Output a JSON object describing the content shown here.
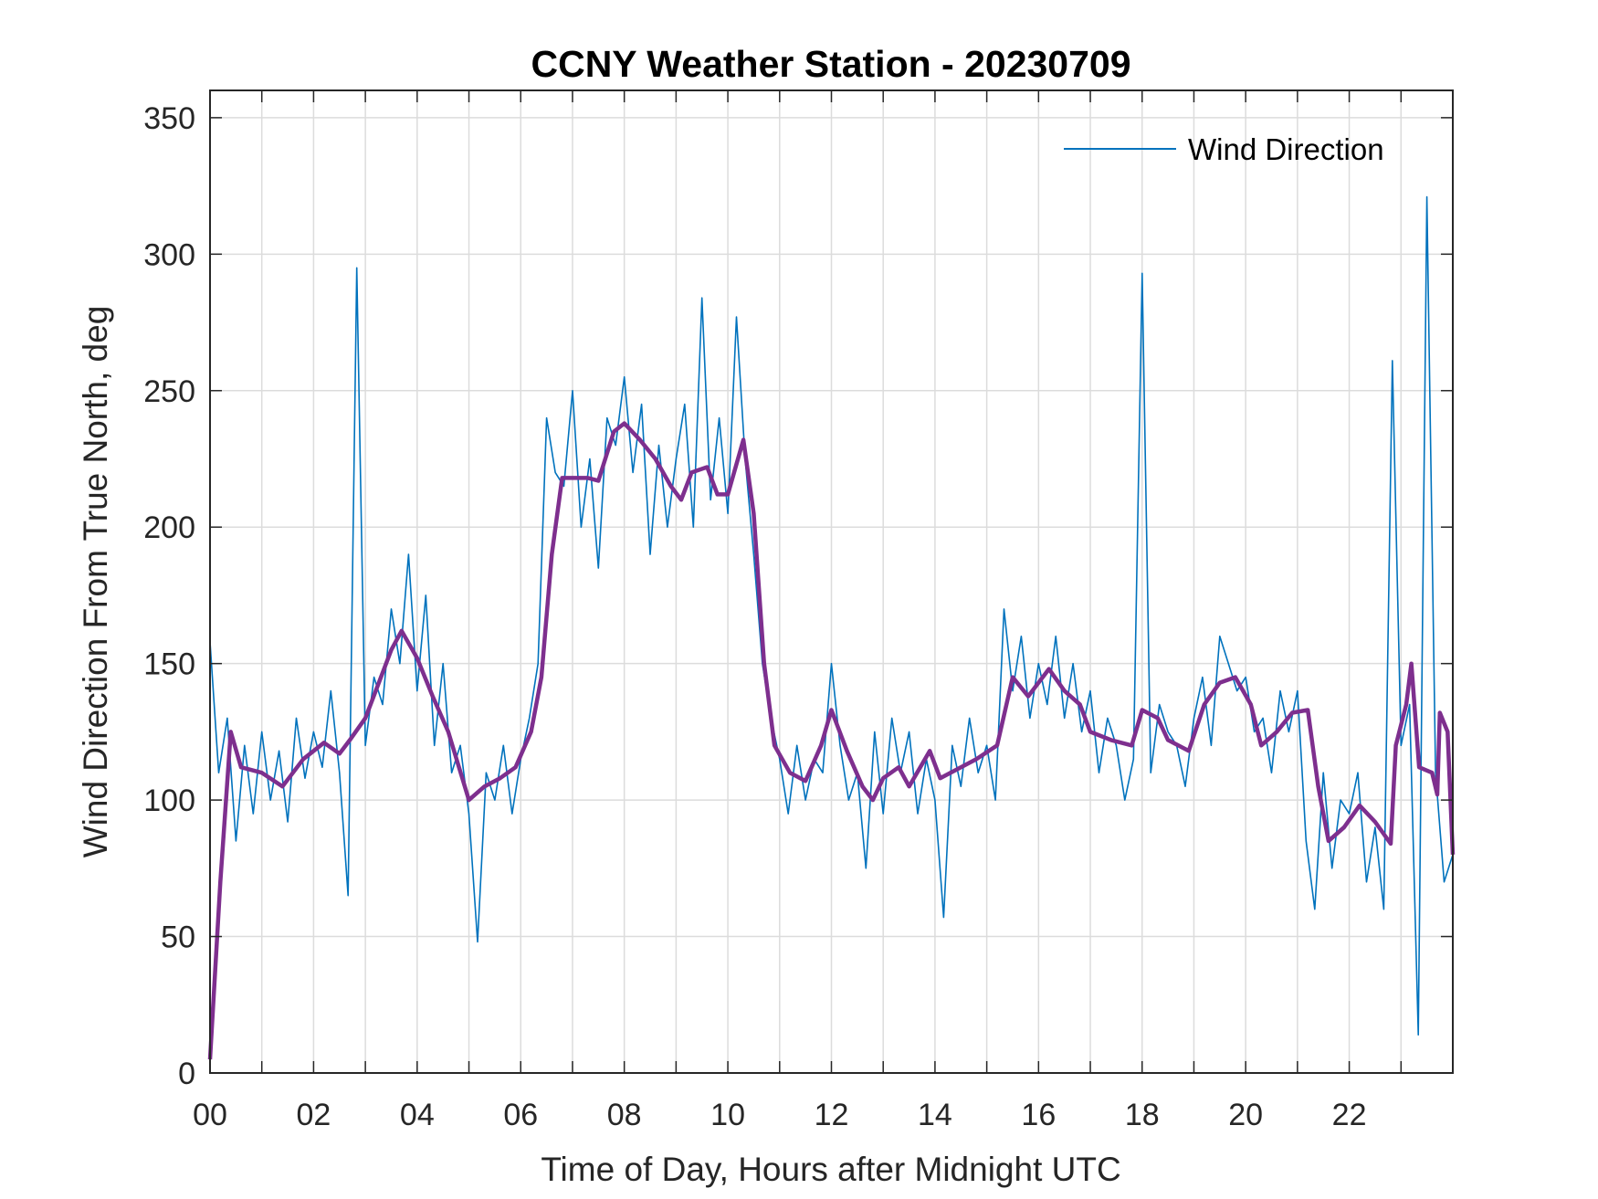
{
  "chart_data": {
    "type": "line",
    "title": "CCNY Weather Station - 20230709",
    "xlabel": "Time of Day, Hours after Midnight UTC",
    "ylabel": "Wind Direction From True North, deg",
    "xlim": [
      0,
      24
    ],
    "ylim": [
      0,
      360
    ],
    "xticks": [
      0,
      2,
      4,
      6,
      8,
      10,
      12,
      14,
      16,
      18,
      20,
      22
    ],
    "xtick_labels": [
      "00",
      "02",
      "04",
      "06",
      "08",
      "10",
      "12",
      "14",
      "16",
      "18",
      "20",
      "22"
    ],
    "yticks": [
      0,
      50,
      100,
      150,
      200,
      250,
      300,
      350
    ],
    "ytick_labels": [
      "0",
      "50",
      "100",
      "150",
      "200",
      "250",
      "300",
      "350"
    ],
    "grid": true,
    "legend": {
      "entries": [
        "Wind Direction"
      ],
      "placement": "top-right"
    },
    "colors": {
      "raw": "#0072BD",
      "smooth": "#7E2F8E"
    },
    "series": [
      {
        "name": "Wind Direction",
        "x_step_hours": 0.1666667,
        "values": [
          158,
          110,
          130,
          85,
          120,
          95,
          125,
          100,
          118,
          92,
          130,
          108,
          125,
          112,
          140,
          110,
          65,
          295,
          120,
          145,
          135,
          170,
          150,
          190,
          140,
          175,
          120,
          150,
          110,
          120,
          95,
          48,
          110,
          100,
          120,
          95,
          115,
          130,
          150,
          240,
          220,
          215,
          250,
          200,
          225,
          185,
          240,
          230,
          255,
          220,
          245,
          190,
          230,
          200,
          225,
          245,
          200,
          284,
          210,
          240,
          205,
          277,
          225,
          190,
          150,
          130,
          115,
          95,
          120,
          100,
          115,
          110,
          150,
          120,
          100,
          110,
          75,
          125,
          95,
          130,
          110,
          125,
          95,
          115,
          100,
          57,
          120,
          105,
          130,
          110,
          120,
          100,
          170,
          140,
          160,
          130,
          150,
          135,
          160,
          130,
          150,
          125,
          140,
          110,
          130,
          120,
          100,
          115,
          293,
          110,
          135,
          125,
          120,
          105,
          130,
          145,
          120,
          160,
          150,
          140,
          145,
          125,
          130,
          110,
          140,
          125,
          140,
          85,
          60,
          110,
          75,
          100,
          95,
          110,
          70,
          90,
          60,
          261,
          120,
          135,
          14,
          321,
          110,
          70,
          80
        ]
      },
      {
        "name": "Smoothed (unlabeled)",
        "x": [
          0,
          0.2,
          0.4,
          0.6,
          1.0,
          1.4,
          1.8,
          2.2,
          2.5,
          2.7,
          3.0,
          3.2,
          3.5,
          3.7,
          4.0,
          4.3,
          4.6,
          5.0,
          5.3,
          5.6,
          5.9,
          6.2,
          6.4,
          6.6,
          6.8,
          7.0,
          7.3,
          7.5,
          7.8,
          8.0,
          8.3,
          8.6,
          8.9,
          9.1,
          9.3,
          9.6,
          9.8,
          10.0,
          10.3,
          10.5,
          10.7,
          10.9,
          11.2,
          11.5,
          11.8,
          12.0,
          12.3,
          12.6,
          12.8,
          13.0,
          13.3,
          13.5,
          13.9,
          14.1,
          14.5,
          14.8,
          15.2,
          15.5,
          15.8,
          16.2,
          16.5,
          16.8,
          17.0,
          17.4,
          17.8,
          18.0,
          18.3,
          18.5,
          18.9,
          19.2,
          19.5,
          19.8,
          20.1,
          20.3,
          20.6,
          20.9,
          21.2,
          21.4,
          21.6,
          21.9,
          22.2,
          22.5,
          22.8,
          22.9,
          23.1,
          23.2,
          23.35,
          23.6,
          23.7,
          23.75,
          23.9,
          24.0
        ],
        "y": [
          5,
          70,
          125,
          112,
          110,
          105,
          115,
          121,
          117,
          122,
          130,
          140,
          155,
          162,
          152,
          138,
          125,
          100,
          105,
          108,
          112,
          125,
          145,
          190,
          218,
          218,
          218,
          217,
          235,
          238,
          232,
          225,
          215,
          210,
          220,
          222,
          212,
          212,
          232,
          205,
          150,
          120,
          110,
          107,
          120,
          133,
          118,
          105,
          100,
          108,
          112,
          105,
          118,
          108,
          112,
          115,
          120,
          145,
          138,
          148,
          140,
          135,
          125,
          122,
          120,
          133,
          130,
          122,
          118,
          135,
          143,
          145,
          135,
          120,
          125,
          132,
          133,
          105,
          85,
          90,
          98,
          92,
          84,
          120,
          135,
          150,
          112,
          110,
          102,
          132,
          125,
          80
        ]
      }
    ]
  }
}
